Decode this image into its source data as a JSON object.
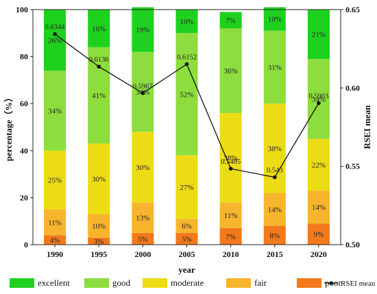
{
  "chart_data": {
    "type": "bar",
    "stacked": true,
    "xlabel": "year",
    "ylabel": "percentage（%）",
    "y2label": "RSEI mean",
    "ylim": [
      0,
      100
    ],
    "y2lim": [
      0.5,
      0.65
    ],
    "yticks": [
      0,
      20,
      40,
      60,
      80,
      100
    ],
    "y2ticks": [
      "0.50",
      "0.55",
      "0.60",
      "0.65"
    ],
    "y2tick_values": [
      0.5,
      0.55,
      0.6,
      0.65
    ],
    "categories": [
      "1990",
      "1995",
      "2000",
      "2005",
      "2010",
      "2015",
      "2020"
    ],
    "series": [
      {
        "name": "poor",
        "color": "#f27a1c",
        "values": [
          4,
          3,
          5,
          5,
          7,
          8,
          9
        ],
        "labels": [
          "4%",
          "3%",
          "5%",
          "5%",
          "7%",
          "8%",
          "9%"
        ]
      },
      {
        "name": "fair",
        "color": "#f7b52e",
        "values": [
          11,
          10,
          13,
          6,
          11,
          14,
          14
        ],
        "labels": [
          "11%",
          "10%",
          "13%",
          "6%",
          "11%",
          "14%",
          "14%"
        ]
      },
      {
        "name": "moderate",
        "color": "#ecdc15",
        "values": [
          25,
          30,
          30,
          27,
          38,
          38,
          22
        ],
        "labels": [
          "25%",
          "30%",
          "30%",
          "27%",
          "38%",
          "38%",
          "22%"
        ]
      },
      {
        "name": "good",
        "color": "#8ddd3e",
        "values": [
          34,
          41,
          34,
          52,
          36,
          31,
          34
        ],
        "labels": [
          "34%",
          "41%",
          "34%",
          "52%",
          "36%",
          "31%",
          "34%"
        ]
      },
      {
        "name": "excellent",
        "color": "#1fd11f",
        "values": [
          26,
          16,
          19,
          10,
          7,
          10,
          21
        ],
        "labels": [
          "26%",
          "16%",
          "19%",
          "10%",
          "7%",
          "10%",
          "21%"
        ]
      }
    ],
    "line": {
      "name": "RSEI mean",
      "values": [
        0.6344,
        0.6136,
        0.5967,
        0.6152,
        0.5485,
        0.543,
        0.5903
      ],
      "labels": [
        "0.6344",
        "0.6136",
        "0.5967",
        "0.6152",
        "0.5485",
        "0.543",
        "0.5903"
      ],
      "color": "#111111"
    },
    "legend": {
      "placement": "bottom",
      "entries": [
        "excellent",
        "good",
        "moderate",
        "fair",
        "poor",
        "RSEI mean"
      ]
    }
  }
}
